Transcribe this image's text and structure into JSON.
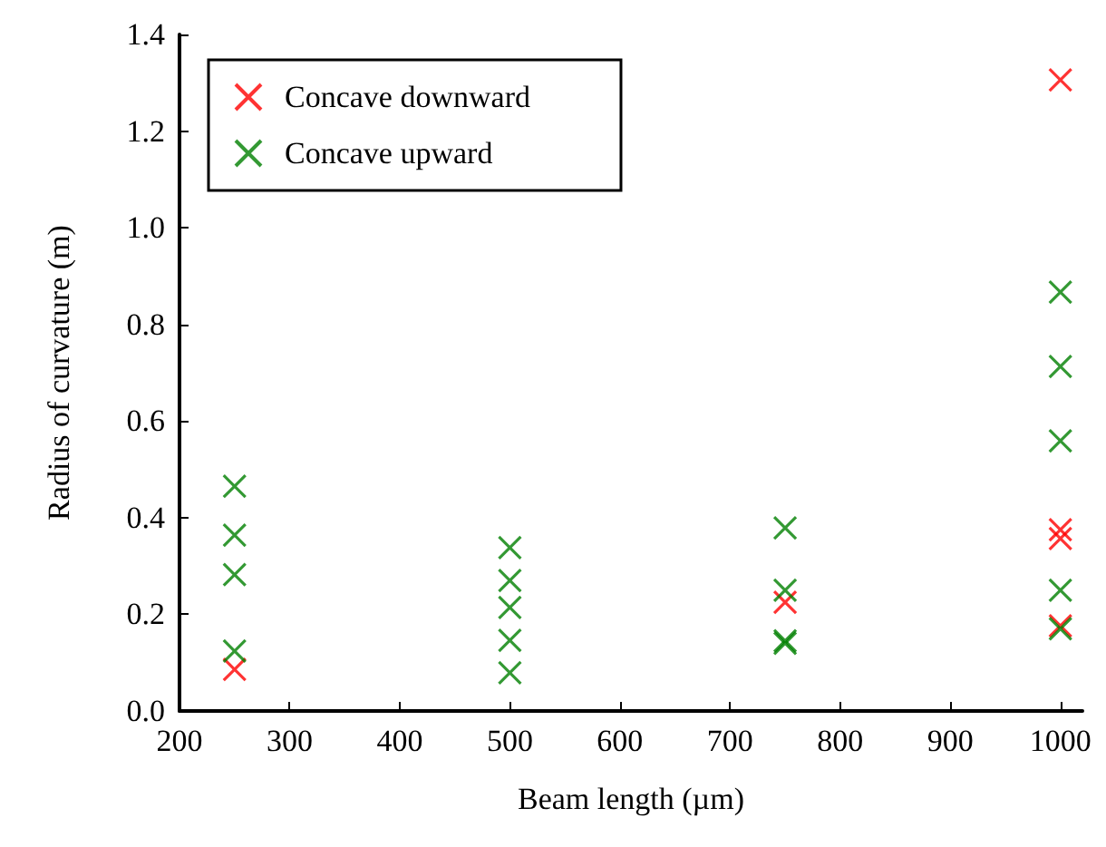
{
  "chart_data": {
    "type": "scatter",
    "xlabel": "Beam length (µm)",
    "ylabel": "Radius of curvature (m)",
    "xlim": [
      200,
      1020
    ],
    "xticks": [
      200,
      300,
      400,
      500,
      600,
      700,
      800,
      900,
      1000
    ],
    "ylim": [
      0,
      1.4
    ],
    "yticks": [
      {
        "value": 0,
        "label": "0.0"
      },
      0.2,
      0.4,
      0.6,
      0.8,
      {
        "value": 1,
        "label": "1.0"
      },
      1.2,
      1.4
    ],
    "marker": "cross",
    "grid": false,
    "legend": "top left",
    "series": [
      {
        "name": "Concave downward",
        "color": "#ff0000",
        "x": [
          250,
          750,
          1000,
          1000,
          1000,
          1000
        ],
        "values": [
          0.086,
          0.225,
          1.306,
          0.375,
          0.357,
          0.176
        ]
      },
      {
        "name": "Concave upward",
        "color": "#008000",
        "x": [
          250,
          250,
          250,
          250,
          500,
          500,
          500,
          500,
          500,
          750,
          750,
          750,
          750,
          1000,
          1000,
          1000,
          1000,
          1000
        ],
        "values": [
          0.465,
          0.364,
          0.282,
          0.124,
          0.338,
          0.27,
          0.214,
          0.146,
          0.079,
          0.379,
          0.25,
          0.145,
          0.14,
          0.867,
          0.713,
          0.559,
          0.25,
          0.17
        ]
      }
    ]
  }
}
